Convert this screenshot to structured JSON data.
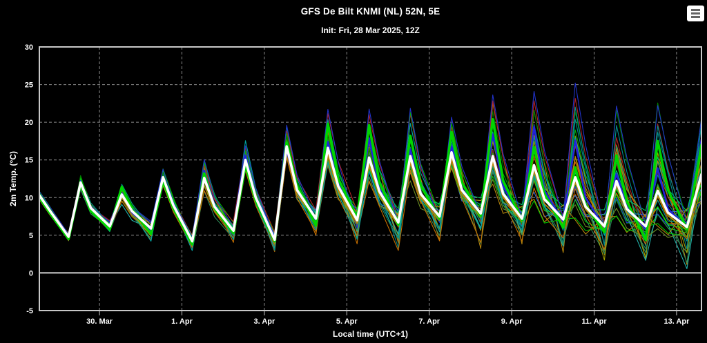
{
  "page": {
    "background": "#000000",
    "text_color": "#ffffff"
  },
  "icons": {
    "menu": "hamburger-icon"
  },
  "chart_data": {
    "type": "line",
    "title": "GFS De Bilt KNMI (NL) 52N, 5E",
    "subtitle": "Init: Fri, 28 Mar 2025, 12Z",
    "xlabel": "Local time (UTC+1)",
    "ylabel": "2m Temp. (°C)",
    "ylim": [
      -5,
      30
    ],
    "yticks": [
      -5,
      0,
      5,
      10,
      15,
      20,
      25,
      30
    ],
    "x_range_hours": [
      0,
      385.5
    ],
    "x_start": "2025-03-28 13:00 local (init 12Z)",
    "xticks": [
      {
        "hour": 35,
        "label": "30. Mar"
      },
      {
        "hour": 83,
        "label": "1. Apr"
      },
      {
        "hour": 131,
        "label": "3. Apr"
      },
      {
        "hour": 179,
        "label": "5. Apr"
      },
      {
        "hour": 227,
        "label": "7. Apr"
      },
      {
        "hour": 275,
        "label": "9. Apr"
      },
      {
        "hour": 323,
        "label": "11. Apr"
      },
      {
        "hour": 371,
        "label": "13. Apr"
      }
    ],
    "grid": {
      "color": "#8a8a8a",
      "dash": "4,3",
      "axis_color": "#c8c8c8",
      "zero_line_color": "#d4d4d4",
      "zero_line_value": 0,
      "legend": "none"
    },
    "series": [
      {
        "name": "secondary-run",
        "color": "#b8860b",
        "width": 1.8,
        "points": [
          [
            0,
            9.8
          ],
          [
            6,
            7.8
          ],
          [
            17,
            4.5
          ],
          [
            24,
            11.5
          ],
          [
            30,
            8.2
          ],
          [
            41,
            5.9
          ],
          [
            48,
            10.0
          ],
          [
            54,
            7.8
          ],
          [
            65,
            5.6
          ],
          [
            72,
            12.0
          ],
          [
            78,
            8.6
          ],
          [
            89,
            3.9
          ],
          [
            96,
            12.2
          ],
          [
            102,
            8.4
          ],
          [
            113,
            5.2
          ],
          [
            120,
            14.2
          ],
          [
            126,
            9.5
          ],
          [
            137,
            4.0
          ],
          [
            144,
            15.8
          ],
          [
            150,
            10.4
          ],
          [
            161,
            6.8
          ],
          [
            168,
            15.8
          ],
          [
            174,
            11.0
          ],
          [
            185,
            6.6
          ],
          [
            192,
            14.4
          ],
          [
            198,
            10.2
          ],
          [
            209,
            6.2
          ],
          [
            216,
            14.6
          ],
          [
            222,
            10.0
          ],
          [
            233,
            7.0
          ],
          [
            240,
            15.2
          ],
          [
            246,
            10.5
          ],
          [
            257,
            7.4
          ],
          [
            264,
            14.6
          ],
          [
            270,
            10.0
          ],
          [
            281,
            6.8
          ],
          [
            288,
            13.5
          ],
          [
            294,
            9.2
          ],
          [
            305,
            6.6
          ],
          [
            312,
            12.0
          ],
          [
            318,
            8.4
          ],
          [
            329,
            5.8
          ],
          [
            336,
            11.6
          ],
          [
            342,
            8.0
          ],
          [
            353,
            5.8
          ],
          [
            360,
            10.2
          ],
          [
            366,
            7.6
          ],
          [
            377,
            5.7
          ],
          [
            385.5,
            12.5
          ]
        ]
      },
      {
        "name": "control-run",
        "color": "#2222dd",
        "width": 2.6,
        "points": [
          [
            0,
            10.2
          ],
          [
            6,
            8.2
          ],
          [
            17,
            4.6
          ],
          [
            24,
            11.9
          ],
          [
            30,
            8.4
          ],
          [
            41,
            6.0
          ],
          [
            48,
            10.6
          ],
          [
            54,
            8.0
          ],
          [
            65,
            5.6
          ],
          [
            72,
            12.6
          ],
          [
            78,
            8.9
          ],
          [
            89,
            4.0
          ],
          [
            96,
            13.6
          ],
          [
            102,
            9.0
          ],
          [
            113,
            5.4
          ],
          [
            120,
            15.6
          ],
          [
            126,
            10.2
          ],
          [
            137,
            4.6
          ],
          [
            144,
            16.3
          ],
          [
            150,
            11.0
          ],
          [
            161,
            7.0
          ],
          [
            168,
            17.4
          ],
          [
            174,
            11.8
          ],
          [
            185,
            7.1
          ],
          [
            192,
            17.9
          ],
          [
            198,
            11.2
          ],
          [
            209,
            6.5
          ],
          [
            216,
            16.4
          ],
          [
            222,
            10.6
          ],
          [
            233,
            7.3
          ],
          [
            240,
            16.8
          ],
          [
            246,
            11.2
          ],
          [
            257,
            7.7
          ],
          [
            264,
            18.4
          ],
          [
            270,
            11.5
          ],
          [
            281,
            7.0
          ],
          [
            288,
            19.4
          ],
          [
            294,
            11.0
          ],
          [
            305,
            6.8
          ],
          [
            312,
            17.6
          ],
          [
            318,
            10.0
          ],
          [
            329,
            6.0
          ],
          [
            336,
            13.2
          ],
          [
            342,
            8.8
          ],
          [
            353,
            5.8
          ],
          [
            360,
            13.9
          ],
          [
            366,
            8.5
          ],
          [
            377,
            6.0
          ],
          [
            385.5,
            17.7
          ]
        ]
      },
      {
        "name": "operational-run",
        "color": "#00d500",
        "width": 3.6,
        "points": [
          [
            0,
            10.0
          ],
          [
            6,
            8.0
          ],
          [
            17,
            4.5
          ],
          [
            24,
            11.8
          ],
          [
            30,
            8.2
          ],
          [
            41,
            5.8
          ],
          [
            48,
            11.4
          ],
          [
            54,
            8.4
          ],
          [
            65,
            5.2
          ],
          [
            72,
            12.2
          ],
          [
            78,
            8.6
          ],
          [
            89,
            3.8
          ],
          [
            96,
            13.2
          ],
          [
            102,
            8.6
          ],
          [
            113,
            5.3
          ],
          [
            120,
            14.3
          ],
          [
            126,
            9.6
          ],
          [
            137,
            4.2
          ],
          [
            144,
            17.3
          ],
          [
            150,
            11.5
          ],
          [
            161,
            6.3
          ],
          [
            168,
            19.8
          ],
          [
            174,
            12.5
          ],
          [
            185,
            7.3
          ],
          [
            192,
            19.6
          ],
          [
            198,
            12.0
          ],
          [
            209,
            6.4
          ],
          [
            216,
            18.2
          ],
          [
            222,
            11.6
          ],
          [
            233,
            7.2
          ],
          [
            240,
            18.7
          ],
          [
            246,
            12.0
          ],
          [
            257,
            7.6
          ],
          [
            264,
            20.4
          ],
          [
            270,
            12.2
          ],
          [
            281,
            7.0
          ],
          [
            288,
            16.7
          ],
          [
            294,
            10.5
          ],
          [
            305,
            6.0
          ],
          [
            312,
            14.0
          ],
          [
            318,
            9.0
          ],
          [
            329,
            5.4
          ],
          [
            336,
            15.6
          ],
          [
            342,
            9.5
          ],
          [
            353,
            4.4
          ],
          [
            360,
            17.5
          ],
          [
            366,
            11.0
          ],
          [
            377,
            5.8
          ],
          [
            385.5,
            17.0
          ]
        ]
      },
      {
        "name": "ensemble-mean",
        "color": "#ffffff",
        "width": 3.6,
        "points": [
          [
            0,
            10.3
          ],
          [
            6,
            8.3
          ],
          [
            17,
            4.8
          ],
          [
            24,
            12.0
          ],
          [
            30,
            8.6
          ],
          [
            41,
            6.2
          ],
          [
            48,
            10.4
          ],
          [
            54,
            8.2
          ],
          [
            65,
            5.9
          ],
          [
            72,
            12.7
          ],
          [
            78,
            9.0
          ],
          [
            89,
            4.2
          ],
          [
            96,
            12.6
          ],
          [
            102,
            8.8
          ],
          [
            113,
            5.6
          ],
          [
            120,
            15.0
          ],
          [
            126,
            10.0
          ],
          [
            137,
            4.4
          ],
          [
            144,
            16.8
          ],
          [
            150,
            11.0
          ],
          [
            161,
            7.2
          ],
          [
            168,
            16.6
          ],
          [
            174,
            11.5
          ],
          [
            185,
            7.0
          ],
          [
            192,
            15.3
          ],
          [
            198,
            10.8
          ],
          [
            209,
            6.7
          ],
          [
            216,
            15.5
          ],
          [
            222,
            10.5
          ],
          [
            233,
            7.5
          ],
          [
            240,
            16.0
          ],
          [
            246,
            11.0
          ],
          [
            257,
            7.9
          ],
          [
            264,
            15.5
          ],
          [
            270,
            10.5
          ],
          [
            281,
            7.2
          ],
          [
            288,
            14.3
          ],
          [
            294,
            9.8
          ],
          [
            305,
            7.1
          ],
          [
            312,
            12.7
          ],
          [
            318,
            8.8
          ],
          [
            329,
            6.2
          ],
          [
            336,
            12.2
          ],
          [
            342,
            8.5
          ],
          [
            353,
            6.2
          ],
          [
            360,
            10.9
          ],
          [
            366,
            8.0
          ],
          [
            377,
            6.1
          ],
          [
            385.5,
            13.1
          ]
        ]
      }
    ],
    "ensemble_members": {
      "count": 30,
      "seed": 20250328,
      "width": 1.1,
      "colors": [
        "#00c000",
        "#008b8b",
        "#b8860b",
        "#00e000",
        "#2e8b57",
        "#c87000",
        "#008000",
        "#00a3a3",
        "#a0a000",
        "#2233cc",
        "#b22222",
        "#20b2aa",
        "#00b400",
        "#cc5500",
        "#009090",
        "#8b2020",
        "#6b8e23",
        "#3a6fd8",
        "#00c864",
        "#b8860b"
      ],
      "envelope": {
        "trough_min": [
          3.8,
          4.8,
          3.6,
          2.6,
          3.5,
          2.5,
          4.5,
          3.0,
          2.0,
          4.0,
          3.0,
          3.5,
          2.5,
          1.5,
          1.0,
          0.5
        ],
        "peak_max": [
          13.5,
          12.5,
          14.5,
          16.0,
          17.5,
          19.5,
          21.5,
          21.8,
          21.9,
          20.5,
          23.6,
          24.3,
          25.0,
          22.2,
          22.4,
          20.5
        ]
      }
    }
  }
}
